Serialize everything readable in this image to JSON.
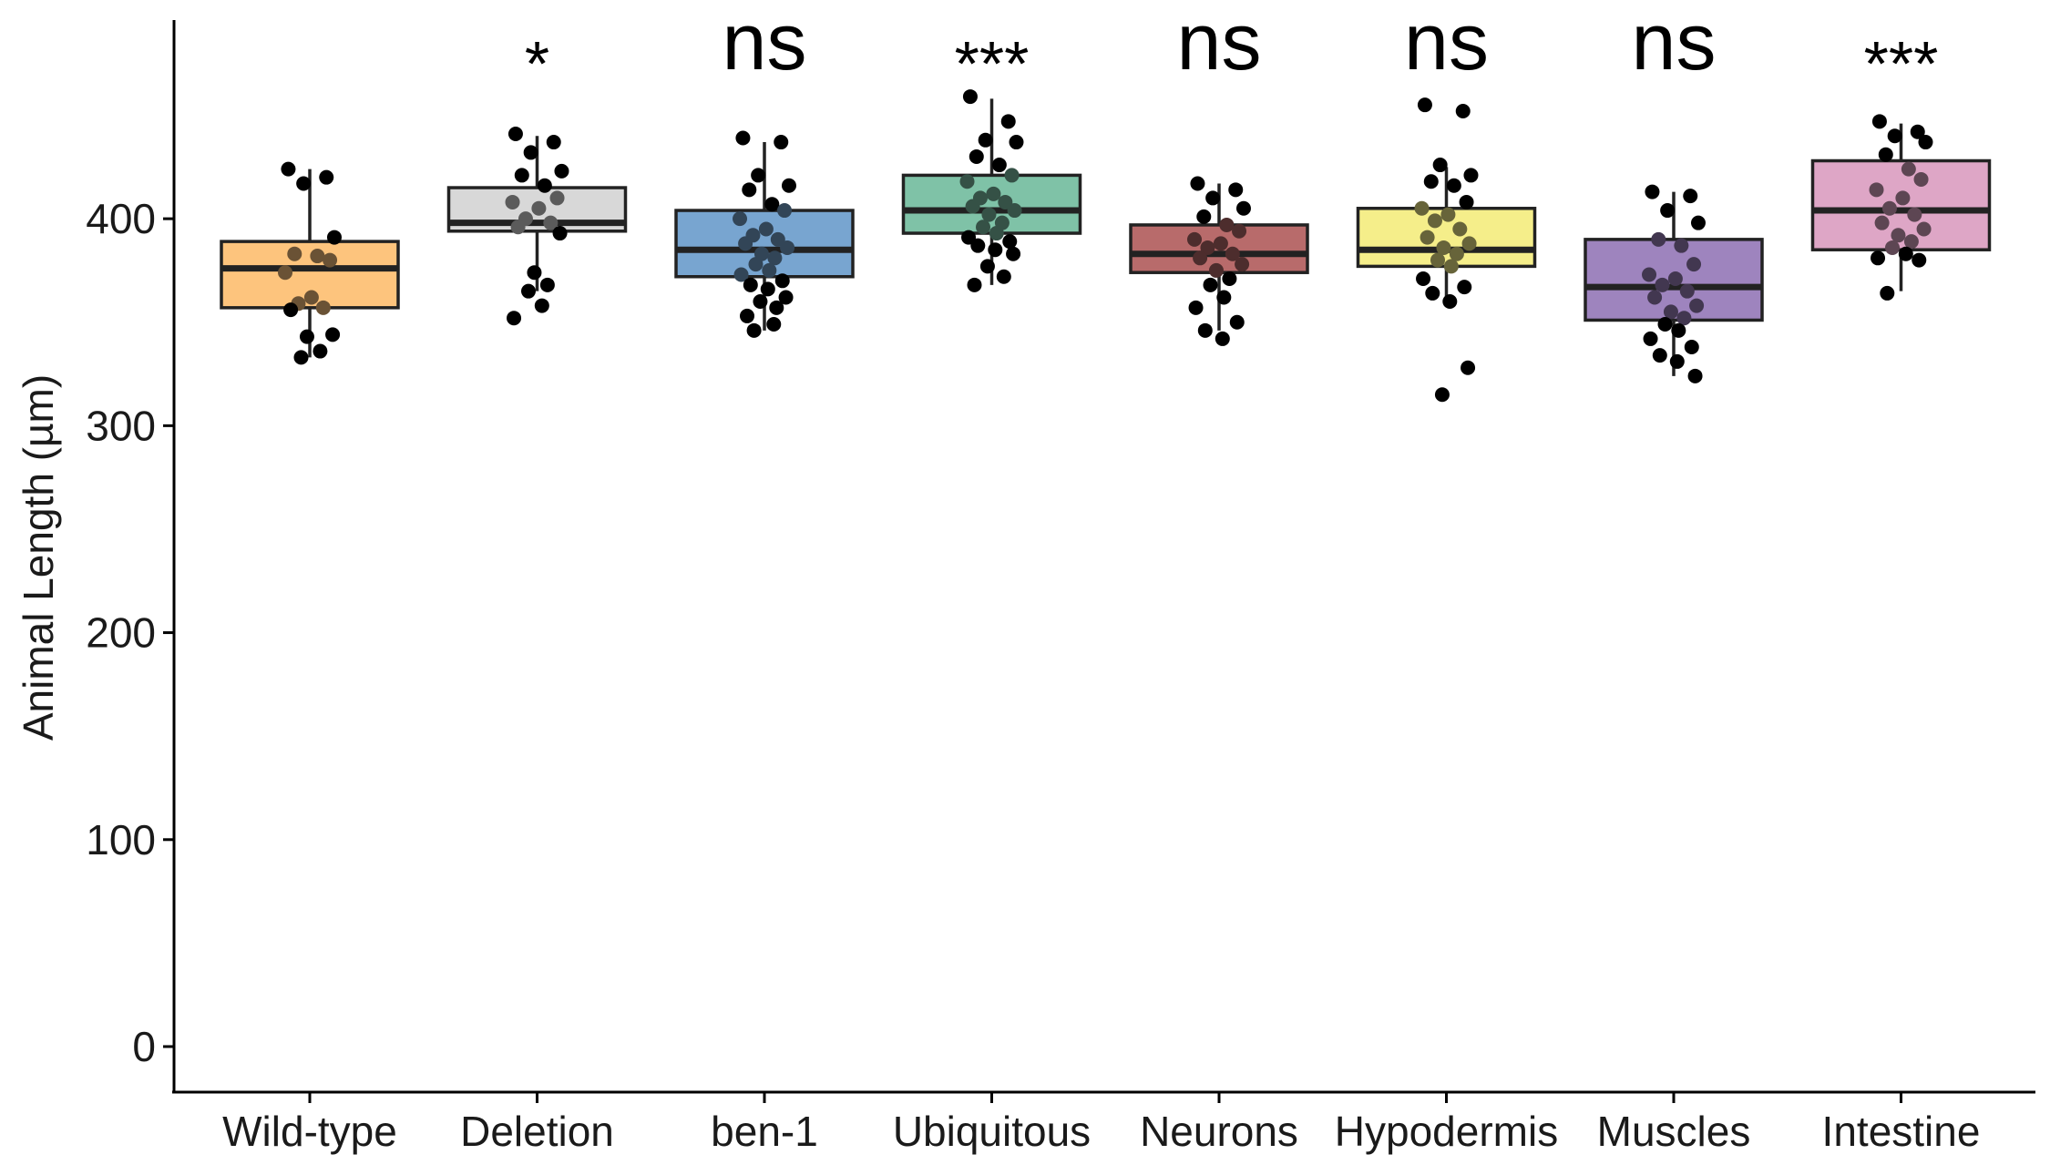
{
  "chart_data": {
    "type": "box",
    "ylabel": "Animal Length (µm)",
    "xlabel": "",
    "ylim": [
      -22,
      496
    ],
    "yticks": [
      0,
      100,
      200,
      300,
      400
    ],
    "ytick_labels": [
      "0",
      "100",
      "200",
      "300",
      "400"
    ],
    "grid": false,
    "legend": "none",
    "categories": [
      "Wild-type",
      "Deletion",
      "ben-1",
      "Ubiquitous",
      "Neurons",
      "Hypodermis",
      "Muscles",
      "Intestine"
    ],
    "significance": [
      "",
      "*",
      "ns",
      "***",
      "ns",
      "ns",
      "ns",
      "***"
    ],
    "boxes": [
      {
        "category": "Wild-type",
        "color": "#FDC47D",
        "whisker_low": 333,
        "q1": 357,
        "median": 376,
        "q3": 389,
        "whisker_high": 424,
        "points": [
          424,
          420,
          417,
          391,
          383,
          382,
          380,
          374,
          362,
          359,
          357,
          356,
          344,
          343,
          336,
          333
        ]
      },
      {
        "category": "Deletion",
        "color": "#D8D8D8",
        "whisker_low": 365,
        "q1": 394,
        "median": 398,
        "q3": 415,
        "whisker_high": 440,
        "points": [
          441,
          437,
          432,
          423,
          421,
          416,
          410,
          408,
          405,
          400,
          398,
          396,
          393,
          374,
          368,
          365,
          358,
          352
        ]
      },
      {
        "category": "ben-1",
        "color": "#78A5D0",
        "whisker_low": 346,
        "q1": 372,
        "median": 385,
        "q3": 404,
        "whisker_high": 437,
        "points": [
          439,
          437,
          421,
          416,
          414,
          407,
          404,
          400,
          395,
          392,
          390,
          388,
          386,
          383,
          381,
          378,
          375,
          373,
          370,
          368,
          366,
          362,
          360,
          357,
          353,
          349,
          346
        ]
      },
      {
        "category": "Ubiquitous",
        "color": "#7FC2A7",
        "whisker_low": 368,
        "q1": 393,
        "median": 404,
        "q3": 421,
        "whisker_high": 458,
        "points": [
          459,
          447,
          438,
          437,
          430,
          426,
          421,
          418,
          412,
          410,
          408,
          406,
          404,
          402,
          398,
          396,
          393,
          391,
          389,
          387,
          385,
          383,
          377,
          372,
          368
        ]
      },
      {
        "category": "Neurons",
        "color": "#B86B6B",
        "whisker_low": 346,
        "q1": 374,
        "median": 383,
        "q3": 397,
        "whisker_high": 417,
        "points": [
          417,
          414,
          410,
          405,
          401,
          397,
          394,
          390,
          388,
          386,
          383,
          381,
          378,
          375,
          371,
          368,
          362,
          357,
          350,
          346,
          342
        ]
      },
      {
        "category": "Hypodermis",
        "color": "#F5EE8A",
        "whisker_low": 360,
        "q1": 377,
        "median": 385,
        "q3": 405,
        "whisker_high": 425,
        "points": [
          455,
          452,
          426,
          421,
          418,
          416,
          408,
          405,
          402,
          399,
          395,
          391,
          388,
          386,
          383,
          380,
          377,
          371,
          367,
          364,
          360,
          328,
          315
        ]
      },
      {
        "category": "Muscles",
        "color": "#9E84BE",
        "whisker_low": 324,
        "q1": 351,
        "median": 367,
        "q3": 390,
        "whisker_high": 413,
        "points": [
          413,
          411,
          404,
          398,
          390,
          387,
          378,
          373,
          371,
          368,
          365,
          362,
          358,
          355,
          352,
          349,
          346,
          342,
          338,
          334,
          331,
          324
        ]
      },
      {
        "category": "Intestine",
        "color": "#DEA6C6",
        "whisker_low": 365,
        "q1": 385,
        "median": 404,
        "q3": 428,
        "whisker_high": 446,
        "points": [
          447,
          442,
          440,
          437,
          431,
          424,
          419,
          414,
          410,
          405,
          402,
          398,
          395,
          392,
          389,
          386,
          383,
          381,
          380,
          364
        ]
      }
    ]
  }
}
